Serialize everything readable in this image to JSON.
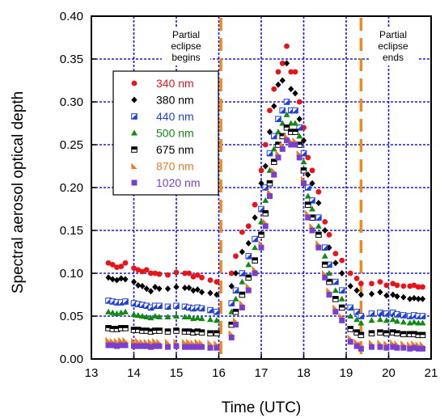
{
  "chart_data": {
    "type": "scatter",
    "title": "",
    "xlabel": "Time (UTC)",
    "ylabel": "Spectral aerosol optical depth",
    "xlim": [
      13,
      21
    ],
    "ylim": [
      0,
      0.4
    ],
    "x_ticks": [
      "13",
      "14",
      "15",
      "16",
      "17",
      "18",
      "19",
      "20",
      "21"
    ],
    "y_ticks": [
      "0.00",
      "0.05",
      "0.10",
      "0.15",
      "0.20",
      "0.25",
      "0.30",
      "0.35",
      "0.40"
    ],
    "grid": true,
    "legend_position": "upper-left",
    "annotations": {
      "eclipse_begins": {
        "x": 16.05,
        "lines": [
          "Partial",
          "eclipse",
          "begins"
        ]
      },
      "eclipse_ends": {
        "x": 19.35,
        "lines": [
          "Partial",
          "eclipse",
          "ends"
        ]
      }
    },
    "x": [
      13.4,
      13.5,
      13.6,
      13.7,
      13.8,
      14.0,
      14.1,
      14.2,
      14.3,
      14.4,
      14.5,
      14.6,
      14.8,
      15.0,
      15.2,
      15.3,
      15.4,
      15.5,
      15.6,
      15.8,
      15.95,
      16.3,
      16.4,
      16.55,
      16.7,
      16.85,
      17.0,
      17.1,
      17.2,
      17.3,
      17.4,
      17.5,
      17.6,
      17.7,
      17.8,
      17.9,
      18.0,
      18.1,
      18.2,
      18.35,
      18.5,
      18.6,
      18.75,
      18.9,
      19.1,
      19.25,
      19.35,
      19.6,
      19.8,
      19.95,
      20.1,
      20.2,
      20.35,
      20.5,
      20.6,
      20.7,
      20.8
    ],
    "series": [
      {
        "name": "340 nm",
        "color": "#e8141c",
        "marker": "circle",
        "values": [
          0.112,
          0.11,
          0.107,
          0.108,
          0.112,
          0.106,
          0.104,
          0.102,
          0.104,
          0.1,
          0.1,
          0.099,
          0.098,
          0.101,
          0.1,
          0.1,
          0.096,
          0.098,
          0.095,
          0.092,
          0.09,
          0.1,
          0.12,
          0.148,
          0.155,
          0.18,
          0.22,
          0.25,
          0.29,
          0.315,
          0.335,
          0.345,
          0.365,
          0.335,
          0.335,
          0.3,
          0.27,
          0.235,
          0.22,
          0.195,
          0.16,
          0.145,
          0.123,
          0.115,
          0.1,
          0.094,
          0.088,
          0.088,
          0.09,
          0.086,
          0.088,
          0.086,
          0.085,
          0.085,
          0.086,
          0.084,
          0.084
        ]
      },
      {
        "name": "380 nm",
        "color": "#000000",
        "marker": "diamond",
        "values": [
          0.095,
          0.093,
          0.092,
          0.094,
          0.093,
          0.09,
          0.086,
          0.085,
          0.082,
          0.079,
          0.084,
          0.082,
          0.082,
          0.084,
          0.083,
          0.083,
          0.08,
          0.081,
          0.078,
          0.077,
          0.075,
          0.085,
          0.1,
          0.125,
          0.135,
          0.165,
          0.205,
          0.225,
          0.265,
          0.295,
          0.32,
          0.325,
          0.345,
          0.315,
          0.31,
          0.28,
          0.255,
          0.215,
          0.205,
          0.182,
          0.15,
          0.13,
          0.112,
          0.1,
          0.085,
          0.08,
          0.075,
          0.076,
          0.078,
          0.074,
          0.075,
          0.073,
          0.072,
          0.07,
          0.071,
          0.07,
          0.07
        ]
      },
      {
        "name": "440 nm",
        "color": "#1f3fd8",
        "marker": "halfsquare",
        "values": [
          0.068,
          0.067,
          0.066,
          0.066,
          0.067,
          0.065,
          0.064,
          0.063,
          0.062,
          0.06,
          0.062,
          0.062,
          0.061,
          0.062,
          0.061,
          0.06,
          0.059,
          0.06,
          0.059,
          0.057,
          0.055,
          0.065,
          0.08,
          0.1,
          0.12,
          0.14,
          0.175,
          0.2,
          0.24,
          0.26,
          0.28,
          0.29,
          0.3,
          0.29,
          0.29,
          0.27,
          0.24,
          0.2,
          0.185,
          0.165,
          0.13,
          0.11,
          0.09,
          0.08,
          0.06,
          0.055,
          0.05,
          0.053,
          0.054,
          0.053,
          0.054,
          0.052,
          0.051,
          0.05,
          0.051,
          0.05,
          0.05
        ]
      },
      {
        "name": "500 nm",
        "color": "#118a11",
        "marker": "triangle",
        "values": [
          0.055,
          0.054,
          0.053,
          0.054,
          0.055,
          0.052,
          0.051,
          0.05,
          0.049,
          0.048,
          0.05,
          0.049,
          0.049,
          0.05,
          0.049,
          0.049,
          0.047,
          0.048,
          0.047,
          0.046,
          0.045,
          0.055,
          0.07,
          0.09,
          0.11,
          0.13,
          0.16,
          0.185,
          0.22,
          0.245,
          0.265,
          0.275,
          0.285,
          0.275,
          0.275,
          0.26,
          0.23,
          0.19,
          0.175,
          0.155,
          0.12,
          0.1,
          0.08,
          0.07,
          0.05,
          0.046,
          0.042,
          0.045,
          0.046,
          0.045,
          0.046,
          0.044,
          0.043,
          0.042,
          0.043,
          0.042,
          0.042
        ]
      },
      {
        "name": "675 nm",
        "color": "#000000",
        "marker": "halfsquare-h",
        "values": [
          0.036,
          0.035,
          0.035,
          0.036,
          0.036,
          0.034,
          0.034,
          0.033,
          0.033,
          0.032,
          0.033,
          0.033,
          0.032,
          0.033,
          0.032,
          0.032,
          0.031,
          0.032,
          0.031,
          0.03,
          0.03,
          0.04,
          0.055,
          0.075,
          0.095,
          0.115,
          0.145,
          0.17,
          0.205,
          0.23,
          0.25,
          0.26,
          0.27,
          0.265,
          0.265,
          0.25,
          0.22,
          0.18,
          0.165,
          0.145,
          0.11,
          0.09,
          0.07,
          0.06,
          0.035,
          0.031,
          0.028,
          0.03,
          0.031,
          0.03,
          0.031,
          0.03,
          0.029,
          0.029,
          0.029,
          0.028,
          0.028
        ]
      },
      {
        "name": "870 nm",
        "color": "#ee7a22",
        "marker": "halftriangle",
        "values": [
          0.022,
          0.021,
          0.021,
          0.022,
          0.022,
          0.021,
          0.021,
          0.02,
          0.02,
          0.02,
          0.021,
          0.02,
          0.02,
          0.02,
          0.02,
          0.02,
          0.019,
          0.02,
          0.019,
          0.019,
          0.018,
          0.03,
          0.045,
          0.065,
          0.085,
          0.105,
          0.135,
          0.16,
          0.195,
          0.22,
          0.24,
          0.25,
          0.26,
          0.255,
          0.255,
          0.24,
          0.21,
          0.17,
          0.155,
          0.135,
          0.1,
          0.08,
          0.06,
          0.05,
          0.025,
          0.02,
          0.017,
          0.019,
          0.019,
          0.018,
          0.019,
          0.018,
          0.018,
          0.017,
          0.018,
          0.017,
          0.017
        ]
      },
      {
        "name": "1020 nm",
        "color": "#7b3fd0",
        "marker": "square",
        "values": [
          0.016,
          0.016,
          0.015,
          0.016,
          0.016,
          0.015,
          0.015,
          0.015,
          0.015,
          0.014,
          0.015,
          0.015,
          0.014,
          0.015,
          0.014,
          0.014,
          0.014,
          0.014,
          0.014,
          0.013,
          0.013,
          0.025,
          0.04,
          0.06,
          0.08,
          0.1,
          0.13,
          0.155,
          0.19,
          0.215,
          0.235,
          0.245,
          0.255,
          0.25,
          0.25,
          0.235,
          0.205,
          0.165,
          0.15,
          0.13,
          0.095,
          0.075,
          0.055,
          0.045,
          0.02,
          0.015,
          0.012,
          0.014,
          0.014,
          0.013,
          0.014,
          0.013,
          0.013,
          0.012,
          0.013,
          0.012,
          0.012
        ]
      }
    ]
  }
}
